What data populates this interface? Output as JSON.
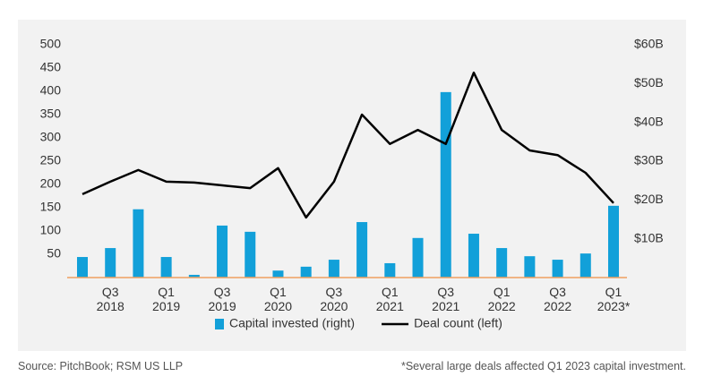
{
  "chart_data": {
    "type": "bar-line",
    "categories": [
      null,
      "Q3 2018",
      null,
      "Q1 2019",
      null,
      "Q3 2019",
      null,
      "Q1 2020",
      null,
      "Q3 2020",
      null,
      "Q1 2021",
      null,
      "Q3 2021",
      null,
      "Q1 2022",
      null,
      "Q3 2022",
      null,
      "Q1 2023*"
    ],
    "series": [
      {
        "name": "Capital invested (right)",
        "type": "bar",
        "axis": "y2",
        "color": "#12a0d9",
        "values": [
          5.3,
          7.6,
          17.6,
          5.3,
          0.7,
          13.4,
          11.8,
          1.8,
          2.8,
          4.6,
          14.3,
          3.7,
          10.2,
          47.8,
          11.3,
          7.6,
          5.5,
          4.6,
          6.2,
          18.5
        ]
      },
      {
        "name": "Deal count (left)",
        "type": "line",
        "color": "#000000",
        "values": [
          179,
          206,
          231,
          206,
          204,
          198,
          192,
          235,
          129,
          206,
          350,
          287,
          317,
          287,
          440,
          317,
          273,
          263,
          225,
          160
        ]
      }
    ],
    "ylim": [
      0,
      500
    ],
    "yticks": [
      50,
      100,
      150,
      200,
      250,
      300,
      350,
      400,
      450,
      500
    ],
    "y2lim": [
      0,
      60
    ],
    "y2ticks": [
      {
        "value": 10,
        "label": "$10B"
      },
      {
        "value": 20,
        "label": "$20B"
      },
      {
        "value": 30,
        "label": "$30B"
      },
      {
        "value": 40,
        "label": "$40B"
      },
      {
        "value": 50,
        "label": "$50B"
      },
      {
        "value": 60,
        "label": "$60B"
      }
    ],
    "source": "Source: PitchBook; RSM US LLP",
    "note": "*Several large deals affected Q1 2023 capital investment."
  }
}
